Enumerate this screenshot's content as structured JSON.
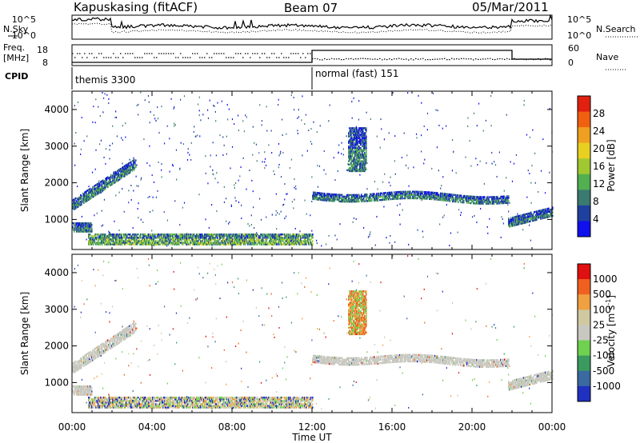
{
  "header": {
    "title": "Kapuskasing (fitACF)",
    "beam": "Beam 07",
    "date": "05/Mar/2011"
  },
  "strip_panels": {
    "nsky_label": "N.Sky",
    "nsearch_label": "N.Search",
    "noise_ticks_left": [
      "10^5",
      "10^0"
    ],
    "noise_ticks_right": [
      "10^5",
      "10^0"
    ],
    "freq_label_1": "Freq.",
    "freq_label_2": "[MHz]",
    "freq_ticks": [
      "18",
      "8"
    ],
    "nave_label": "Nave",
    "nave_ticks": [
      "60",
      "0"
    ],
    "cpid_label": "CPID",
    "cpid_segments": [
      {
        "label": "themis 3300",
        "start_hour": 0,
        "end_hour": 12
      },
      {
        "label": "normal (fast) 151",
        "start_hour": 12,
        "end_hour": 24
      }
    ]
  },
  "axes": {
    "ylabel": "Slant Range [km]",
    "xlabel": "Time UT",
    "x_ticks": [
      "00:00",
      "04:00",
      "08:00",
      "12:00",
      "16:00",
      "20:00",
      "00:00"
    ],
    "y_ticks": [
      "1000",
      "2000",
      "3000",
      "4000"
    ]
  },
  "chart_data": [
    {
      "type": "heatmap",
      "name": "power",
      "x_range_hours": [
        0,
        24
      ],
      "y_range_km": [
        180,
        4500
      ],
      "colorbar": {
        "label": "Power [dB]",
        "ticks": [
          "28",
          "24",
          "20",
          "16",
          "12",
          "8",
          "4"
        ],
        "range": [
          0,
          30
        ],
        "colors": [
          "#1010ee",
          "#2040a0",
          "#3a7a70",
          "#52b050",
          "#a0c830",
          "#e8d020",
          "#f0a020",
          "#f06010",
          "#e02010"
        ]
      },
      "features": [
        {
          "desc_ref": "band",
          "hours": [
            0.0,
            3.2
          ],
          "range_km": [
            1350,
            2650
          ]
        },
        {
          "desc_ref": "band",
          "hours": [
            0.0,
            1.0
          ],
          "range_km": [
            650,
            900
          ]
        },
        {
          "desc_ref": "band",
          "hours": [
            0.8,
            12.0
          ],
          "range_km": [
            300,
            600
          ]
        },
        {
          "desc_ref": "band",
          "hours": [
            12.0,
            21.8
          ],
          "range_km": [
            1400,
            2000
          ]
        },
        {
          "desc_ref": "band",
          "hours": [
            13.8,
            14.7
          ],
          "range_km": [
            2300,
            3500
          ]
        },
        {
          "desc_ref": "band",
          "hours": [
            21.8,
            24.0
          ],
          "range_km": [
            800,
            1300
          ]
        }
      ]
    },
    {
      "type": "heatmap",
      "name": "velocity",
      "x_range_hours": [
        0,
        24
      ],
      "y_range_km": [
        180,
        4500
      ],
      "colorbar": {
        "label": "Velocity [m s-1]",
        "label_main": "Velocity [m s",
        "label_sup": "-1",
        "label_end": "]",
        "ticks": [
          "1000",
          "500",
          "100",
          "25",
          "-25",
          "-100",
          "-500",
          "-1000"
        ],
        "colors": [
          "#2030c0",
          "#3a6aa0",
          "#3a9a60",
          "#70d050",
          "#c8c8c0",
          "#d0c8a0",
          "#f0a040",
          "#f06020",
          "#e01010"
        ]
      }
    }
  ]
}
